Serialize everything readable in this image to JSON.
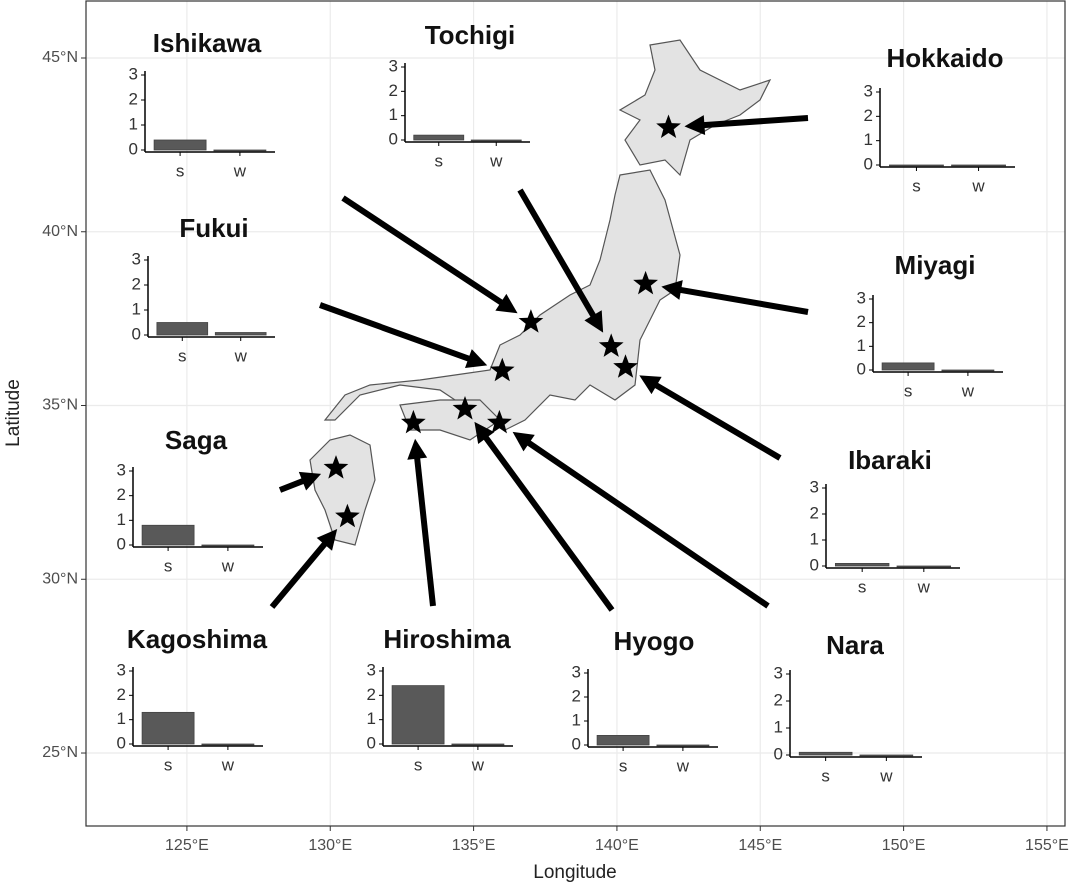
{
  "chart_data": {
    "type": "map",
    "x_label": "Longitude",
    "y_label": "Latitude",
    "xlim": [
      121.48,
      155.63
    ],
    "ylim": [
      22.9,
      46.64
    ],
    "xticks": [
      {
        "value": 125,
        "label": "125°E"
      },
      {
        "value": 130,
        "label": "130°E"
      },
      {
        "value": 135,
        "label": "135°E"
      },
      {
        "value": 140,
        "label": "140°E"
      },
      {
        "value": 145,
        "label": "145°E"
      },
      {
        "value": 150,
        "label": "150°E"
      },
      {
        "value": 155,
        "label": "155°E"
      }
    ],
    "yticks": [
      {
        "value": 25,
        "label": "25°N"
      },
      {
        "value": 30,
        "label": "30°N"
      },
      {
        "value": 35,
        "label": "35°N"
      },
      {
        "value": 40,
        "label": "40°N"
      },
      {
        "value": 45,
        "label": "45°N"
      }
    ],
    "grid": true,
    "bar_color": "#595959",
    "insets": [
      {
        "title": "Ishikawa",
        "lon": 137.0,
        "lat": 37.4,
        "categories": [
          "s",
          "w"
        ],
        "values": [
          0.4,
          0
        ],
        "ylim": [
          0,
          3
        ],
        "yticks": [
          0,
          1,
          2,
          3
        ]
      },
      {
        "title": "Tochigi",
        "lon": 139.8,
        "lat": 36.7,
        "categories": [
          "s",
          "w"
        ],
        "values": [
          0.2,
          0
        ],
        "ylim": [
          0,
          3
        ],
        "yticks": [
          0,
          1,
          2,
          3
        ]
      },
      {
        "title": "Hokkaido",
        "lon": 141.8,
        "lat": 43.0,
        "categories": [
          "s",
          "w"
        ],
        "values": [
          0,
          0
        ],
        "ylim": [
          0,
          3
        ],
        "yticks": [
          0,
          1,
          2,
          3
        ]
      },
      {
        "title": "Fukui",
        "lon": 136.0,
        "lat": 36.0,
        "categories": [
          "s",
          "w"
        ],
        "values": [
          0.5,
          0.1
        ],
        "ylim": [
          0,
          3
        ],
        "yticks": [
          0,
          1,
          2,
          3
        ]
      },
      {
        "title": "Miyagi",
        "lon": 141.0,
        "lat": 38.5,
        "categories": [
          "s",
          "w"
        ],
        "values": [
          0.3,
          0
        ],
        "ylim": [
          0,
          3
        ],
        "yticks": [
          0,
          1,
          2,
          3
        ]
      },
      {
        "title": "Saga",
        "lon": 130.2,
        "lat": 33.2,
        "categories": [
          "s",
          "w"
        ],
        "values": [
          0.8,
          0
        ],
        "ylim": [
          0,
          3
        ],
        "yticks": [
          0,
          1,
          2,
          3
        ]
      },
      {
        "title": "Ibaraki",
        "lon": 140.3,
        "lat": 36.1,
        "categories": [
          "s",
          "w"
        ],
        "values": [
          0.1,
          0
        ],
        "ylim": [
          0,
          3
        ],
        "yticks": [
          0,
          1,
          2,
          3
        ]
      },
      {
        "title": "Kagoshima",
        "lon": 130.6,
        "lat": 31.8,
        "categories": [
          "s",
          "w"
        ],
        "values": [
          1.3,
          0
        ],
        "ylim": [
          0,
          3
        ],
        "yticks": [
          0,
          1,
          2,
          3
        ]
      },
      {
        "title": "Hiroshima",
        "lon": 132.9,
        "lat": 34.5,
        "categories": [
          "s",
          "w"
        ],
        "values": [
          2.4,
          0
        ],
        "ylim": [
          0,
          3
        ],
        "yticks": [
          0,
          1,
          2,
          3
        ]
      },
      {
        "title": "Hyogo",
        "lon": 134.7,
        "lat": 34.9,
        "categories": [
          "s",
          "w"
        ],
        "values": [
          0.4,
          0
        ],
        "ylim": [
          0,
          3
        ],
        "yticks": [
          0,
          1,
          2,
          3
        ]
      },
      {
        "title": "Nara",
        "lon": 135.9,
        "lat": 34.5,
        "categories": [
          "s",
          "w"
        ],
        "values": [
          0.1,
          0
        ],
        "ylim": [
          0,
          3
        ],
        "yticks": [
          0,
          1,
          2,
          3
        ]
      }
    ]
  }
}
